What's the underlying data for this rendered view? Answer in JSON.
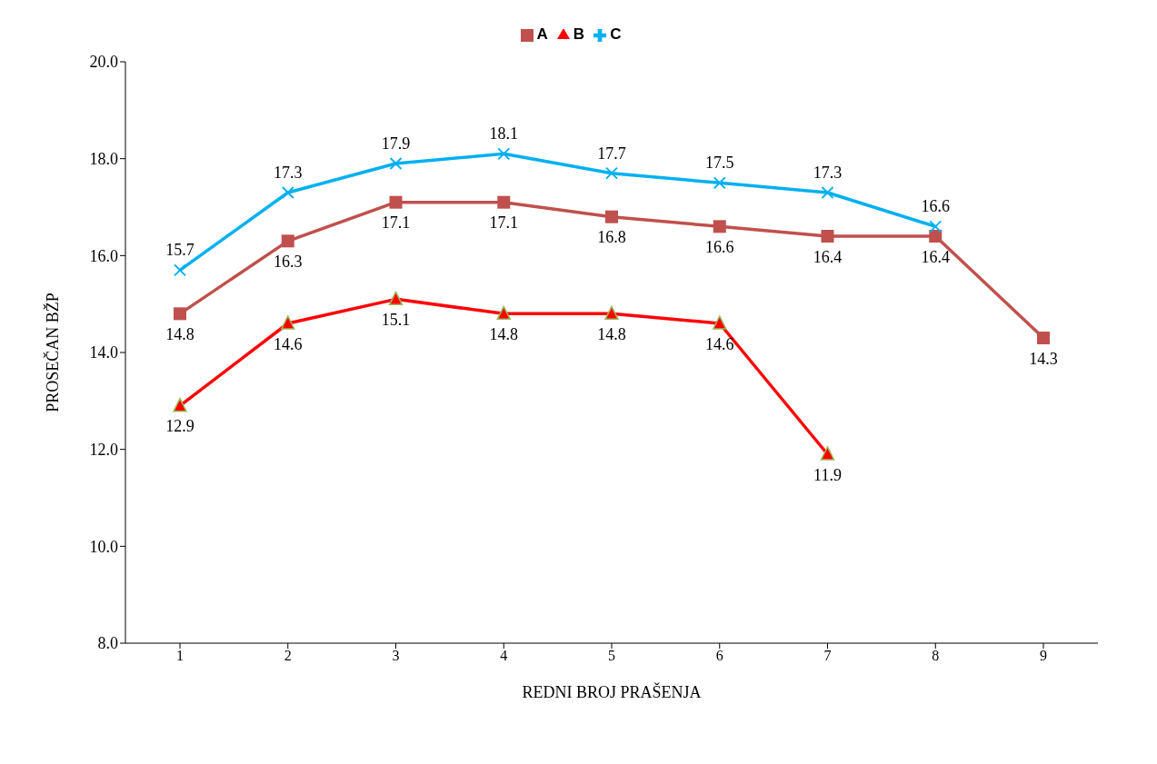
{
  "chart_data": {
    "type": "line",
    "xlabel": "REDNI BROJ PRAŠENJA",
    "ylabel": "PROSEČAN BŽP",
    "categories": [
      "1",
      "2",
      "3",
      "4",
      "5",
      "6",
      "7",
      "8",
      "9"
    ],
    "series": [
      {
        "name": "A",
        "color": "#c0504d",
        "marker": "square",
        "values": [
          14.8,
          16.3,
          17.1,
          17.1,
          16.8,
          16.6,
          16.4,
          16.4,
          14.3
        ]
      },
      {
        "name": "B",
        "color": "#ff0000",
        "marker": "triangle",
        "values": [
          12.9,
          14.6,
          15.1,
          14.8,
          14.8,
          14.6,
          11.9,
          null,
          null
        ]
      },
      {
        "name": "C",
        "color": "#00b0f0",
        "marker": "cross",
        "values": [
          15.7,
          17.3,
          17.9,
          18.1,
          17.7,
          17.5,
          17.3,
          16.6,
          null
        ]
      }
    ],
    "ylim": [
      8,
      20
    ],
    "yticks": [
      {
        "value": 8,
        "label": "8.0"
      },
      {
        "value": 10,
        "label": "10.0"
      },
      {
        "value": 12,
        "label": "12.0"
      },
      {
        "value": 14,
        "label": "14.0"
      },
      {
        "value": 16,
        "label": "16.0"
      },
      {
        "value": 18,
        "label": "18.0"
      },
      {
        "value": 20,
        "label": "20.0"
      }
    ],
    "grid": false,
    "legend": "top",
    "data_labels": true,
    "line_style": "solid"
  }
}
